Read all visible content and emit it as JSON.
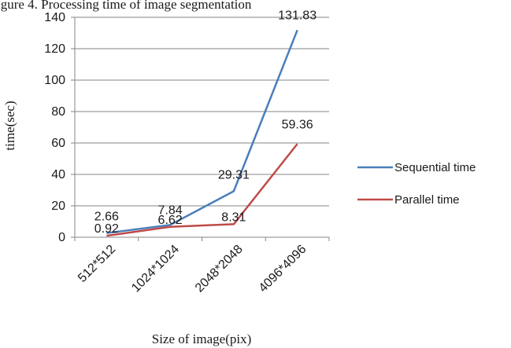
{
  "page": {
    "top_caption": "igure 4. Processing time of image segmentation"
  },
  "chart_data": {
    "type": "line",
    "categories": [
      "512*512",
      "1024*1024",
      "2048*2048",
      "4096*4096"
    ],
    "series": [
      {
        "name": "Sequential time",
        "values": [
          2.66,
          7.84,
          29.31,
          131.83
        ],
        "labels": [
          "2.66",
          "7.84",
          "29.31",
          "131.83"
        ],
        "color": "#4a7ebb"
      },
      {
        "name": "Parallel time",
        "values": [
          0.92,
          6.62,
          8.31,
          59.36
        ],
        "labels": [
          "0.92",
          "6.62",
          "8.31",
          "59.36"
        ],
        "color": "#be4b48"
      }
    ],
    "title": "",
    "xlabel": "Size of image(pix)",
    "ylabel": "time(sec)",
    "ylim": [
      0,
      140
    ],
    "yticks": [
      "0",
      "20",
      "40",
      "60",
      "80",
      "100",
      "120",
      "140"
    ],
    "grid": "horizontal",
    "legend_position": "right"
  }
}
